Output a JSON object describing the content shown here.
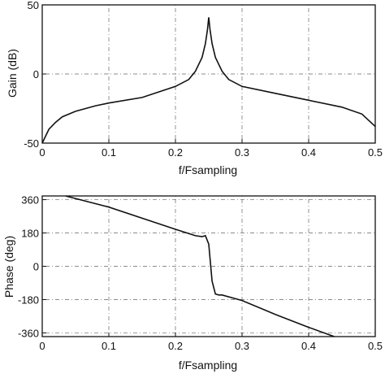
{
  "chart_data": [
    {
      "type": "line",
      "xlabel": "f/Fsampling",
      "ylabel": "Gain (dB)",
      "xlim": [
        0,
        0.5
      ],
      "ylim": [
        -50,
        50
      ],
      "xticks": [
        0,
        0.1,
        0.2,
        0.3,
        0.4,
        0.5
      ],
      "xtick_labels": [
        "0",
        "0.1",
        "0.2",
        "0.3",
        "0.4",
        "0.5"
      ],
      "yticks": [
        50,
        0,
        -50
      ],
      "ytick_labels": [
        "50",
        "0",
        "-50"
      ],
      "grid": true,
      "series": [
        {
          "x": [
            0.0,
            0.005,
            0.01,
            0.02,
            0.03,
            0.05,
            0.08,
            0.1,
            0.15,
            0.2,
            0.22,
            0.23,
            0.24,
            0.245,
            0.248,
            0.25,
            0.252,
            0.255,
            0.26,
            0.27,
            0.28,
            0.3,
            0.35,
            0.4,
            0.45,
            0.48,
            0.5
          ],
          "values": [
            -50,
            -45,
            -40,
            -35,
            -31,
            -27,
            -23,
            -21,
            -17,
            -9,
            -4,
            2,
            12,
            22,
            32,
            41,
            32,
            22,
            12,
            2,
            -4,
            -9,
            -14,
            -19,
            -24,
            -29,
            -38
          ]
        }
      ]
    },
    {
      "type": "line",
      "xlabel": "f/Fsampling",
      "ylabel": "Phase (deg)",
      "xlim": [
        0,
        0.5
      ],
      "ylim": [
        -380,
        380
      ],
      "xticks": [
        0,
        0.1,
        0.2,
        0.3,
        0.4,
        0.5
      ],
      "xtick_labels": [
        "0",
        "0.1",
        "0.2",
        "0.3",
        "0.4",
        "0.5"
      ],
      "yticks": [
        360,
        180,
        0,
        -180,
        -360
      ],
      "ytick_labels": [
        "360",
        "180",
        "0",
        "-180",
        "-360"
      ],
      "grid": true,
      "series": [
        {
          "x": [
            0.035,
            0.1,
            0.2,
            0.23,
            0.24,
            0.245,
            0.25,
            0.255,
            0.26,
            0.265,
            0.27,
            0.3,
            0.35,
            0.4,
            0.45
          ],
          "values": [
            380,
            320,
            200,
            165,
            160,
            165,
            120,
            -80,
            -150,
            -155,
            -155,
            -185,
            -260,
            -330,
            -395
          ]
        }
      ]
    }
  ]
}
